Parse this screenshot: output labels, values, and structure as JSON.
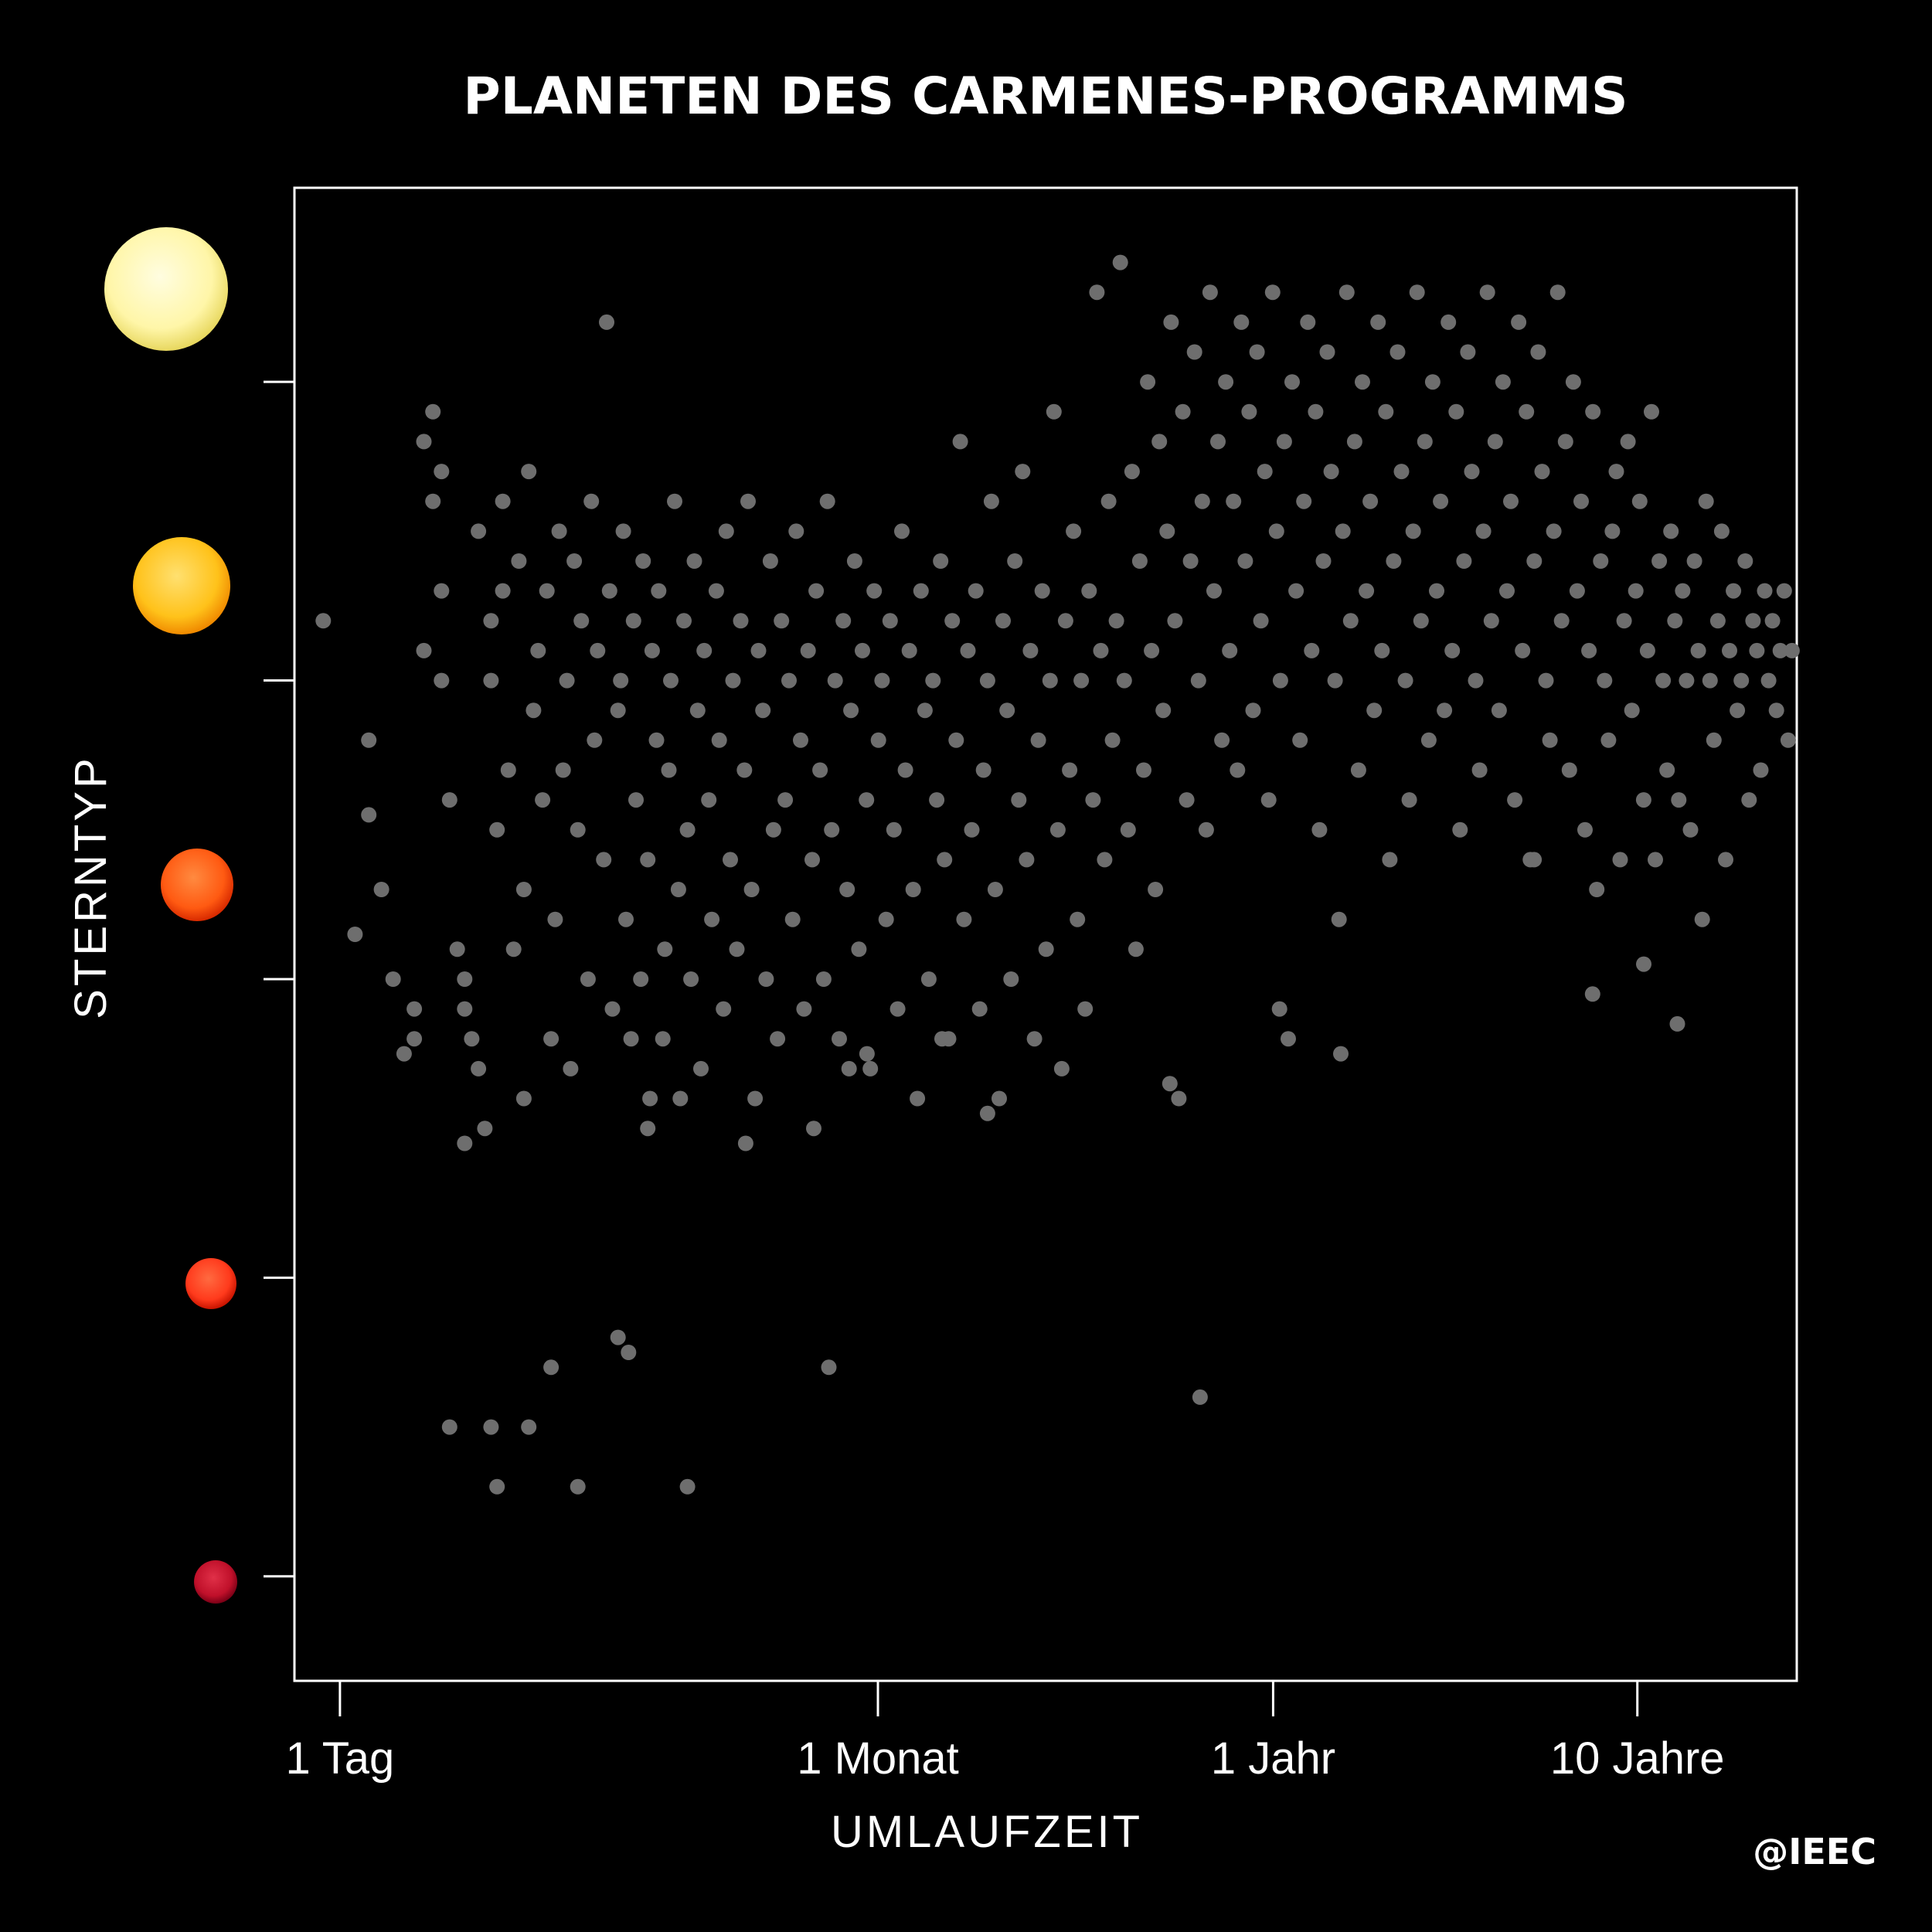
{
  "chart_data": {
    "type": "scatter",
    "title": "PLANETEN DES CARMENES-PROGRAMMS",
    "xlabel": "UMLAUFZEIT",
    "ylabel": "STERNTYP",
    "x_scale": "log",
    "x_unit": "days",
    "xlim": [
      0.75,
      10000
    ],
    "ylim": [
      -0.35,
      4.65
    ],
    "x_ticks": [
      {
        "label": "1 Tag",
        "value": 1
      },
      {
        "label": "1 Monat",
        "value": 30
      },
      {
        "label": "1 Jahr",
        "value": 365
      },
      {
        "label": "10 Jahre",
        "value": 3650
      }
    ],
    "y_categories": [
      {
        "level": 4,
        "star_color": "#fff6a8",
        "edge_color": "#e8d860"
      },
      {
        "level": 3,
        "star_color": "#ffc21a",
        "edge_color": "#f08a00"
      },
      {
        "level": 2,
        "star_color": "#ff5a12",
        "edge_color": "#d82a00"
      },
      {
        "level": 1,
        "star_color": "#ff3a1c",
        "edge_color": "#c81400"
      },
      {
        "level": 0,
        "star_color": "#c0102a",
        "edge_color": "#7a0016"
      }
    ],
    "marker_color": "#6e6e6e",
    "grid": false,
    "legend": "none",
    "points": [
      [
        0.9,
        3.2
      ],
      [
        1.2,
        2.8
      ],
      [
        1.3,
        2.3
      ],
      [
        1.4,
        2.0
      ],
      [
        1.6,
        1.9
      ],
      [
        1.6,
        1.8
      ],
      [
        1.7,
        3.1
      ],
      [
        1.8,
        3.9
      ],
      [
        1.9,
        3.7
      ],
      [
        1.8,
        3.6
      ],
      [
        1.9,
        3.3
      ],
      [
        1.9,
        3.0
      ],
      [
        2.0,
        2.6
      ],
      [
        2.1,
        2.1
      ],
      [
        1.7,
        3.8
      ],
      [
        2.2,
        2.0
      ],
      [
        2.2,
        1.9
      ],
      [
        2.3,
        1.8
      ],
      [
        2.4,
        3.5
      ],
      [
        2.4,
        1.7
      ],
      [
        2.5,
        1.5
      ],
      [
        2.6,
        3.2
      ],
      [
        2.6,
        3.0
      ],
      [
        2.7,
        2.5
      ],
      [
        2.8,
        3.3
      ],
      [
        2.8,
        3.6
      ],
      [
        2.9,
        2.7
      ],
      [
        3.0,
        2.1
      ],
      [
        3.1,
        3.4
      ],
      [
        3.2,
        2.3
      ],
      [
        3.3,
        3.7
      ],
      [
        3.4,
        2.9
      ],
      [
        3.5,
        3.1
      ],
      [
        3.6,
        2.6
      ],
      [
        3.7,
        3.3
      ],
      [
        3.8,
        1.8
      ],
      [
        3.9,
        2.2
      ],
      [
        4.0,
        3.5
      ],
      [
        4.1,
        2.7
      ],
      [
        4.2,
        3.0
      ],
      [
        4.3,
        1.7
      ],
      [
        4.4,
        3.4
      ],
      [
        4.5,
        2.5
      ],
      [
        4.6,
        3.2
      ],
      [
        4.8,
        2.0
      ],
      [
        4.9,
        3.6
      ],
      [
        5.0,
        2.8
      ],
      [
        5.1,
        3.1
      ],
      [
        5.3,
        2.4
      ],
      [
        5.4,
        4.2
      ],
      [
        5.5,
        3.3
      ],
      [
        5.6,
        1.9
      ],
      [
        5.8,
        2.9
      ],
      [
        5.9,
        3.0
      ],
      [
        6.0,
        3.5
      ],
      [
        6.1,
        2.2
      ],
      [
        6.3,
        1.8
      ],
      [
        6.4,
        3.2
      ],
      [
        6.5,
        2.6
      ],
      [
        6.7,
        2.0
      ],
      [
        6.8,
        3.4
      ],
      [
        7.0,
        2.4
      ],
      [
        7.1,
        1.6
      ],
      [
        7.2,
        3.1
      ],
      [
        7.4,
        2.8
      ],
      [
        7.5,
        3.3
      ],
      [
        7.7,
        1.8
      ],
      [
        7.8,
        2.1
      ],
      [
        8.0,
        2.7
      ],
      [
        8.1,
        3.0
      ],
      [
        8.3,
        3.6
      ],
      [
        8.5,
        2.3
      ],
      [
        8.6,
        1.6
      ],
      [
        8.8,
        3.2
      ],
      [
        9.0,
        2.5
      ],
      [
        9.2,
        2.0
      ],
      [
        9.4,
        3.4
      ],
      [
        9.6,
        2.9
      ],
      [
        9.8,
        1.7
      ],
      [
        10.0,
        3.1
      ],
      [
        10.3,
        2.6
      ],
      [
        10.5,
        2.2
      ],
      [
        10.8,
        3.3
      ],
      [
        11.0,
        2.8
      ],
      [
        11.3,
        1.9
      ],
      [
        11.5,
        3.5
      ],
      [
        11.8,
        2.4
      ],
      [
        12.0,
        3.0
      ],
      [
        12.3,
        2.1
      ],
      [
        12.6,
        3.2
      ],
      [
        12.9,
        2.7
      ],
      [
        13.2,
        3.6
      ],
      [
        13.5,
        2.3
      ],
      [
        13.8,
        1.6
      ],
      [
        14.1,
        3.1
      ],
      [
        14.5,
        2.9
      ],
      [
        14.8,
        2.0
      ],
      [
        15.2,
        3.4
      ],
      [
        15.5,
        2.5
      ],
      [
        15.9,
        1.8
      ],
      [
        16.3,
        3.2
      ],
      [
        16.7,
        2.6
      ],
      [
        17.1,
        3.0
      ],
      [
        17.5,
        2.2
      ],
      [
        17.9,
        3.5
      ],
      [
        18.4,
        2.8
      ],
      [
        18.8,
        1.9
      ],
      [
        19.3,
        3.1
      ],
      [
        19.8,
        2.4
      ],
      [
        20.3,
        3.3
      ],
      [
        20.8,
        2.7
      ],
      [
        21.3,
        2.0
      ],
      [
        21.8,
        3.6
      ],
      [
        22.4,
        2.5
      ],
      [
        22.9,
        3.0
      ],
      [
        23.5,
        1.8
      ],
      [
        24.1,
        3.2
      ],
      [
        24.7,
        2.3
      ],
      [
        25.3,
        2.9
      ],
      [
        25.9,
        3.4
      ],
      [
        26.6,
        2.1
      ],
      [
        27.2,
        3.1
      ],
      [
        27.9,
        2.6
      ],
      [
        28.6,
        1.7
      ],
      [
        29.3,
        3.3
      ],
      [
        30.1,
        2.8
      ],
      [
        30.8,
        3.0
      ],
      [
        31.6,
        2.2
      ],
      [
        32.4,
        3.2
      ],
      [
        33.2,
        2.5
      ],
      [
        34.0,
        1.9
      ],
      [
        34.9,
        3.5
      ],
      [
        35.7,
        2.7
      ],
      [
        36.6,
        3.1
      ],
      [
        37.5,
        2.3
      ],
      [
        38.5,
        1.6
      ],
      [
        39.4,
        3.3
      ],
      [
        40.4,
        2.9
      ],
      [
        41.4,
        2.0
      ],
      [
        42.5,
        3.0
      ],
      [
        43.5,
        2.6
      ],
      [
        44.6,
        3.4
      ],
      [
        45.7,
        2.4
      ],
      [
        46.9,
        1.8
      ],
      [
        48.0,
        3.2
      ],
      [
        49.2,
        2.8
      ],
      [
        50.5,
        3.8
      ],
      [
        51.7,
        2.2
      ],
      [
        53.0,
        3.1
      ],
      [
        54.3,
        2.5
      ],
      [
        55.7,
        3.3
      ],
      [
        57.1,
        1.9
      ],
      [
        58.5,
        2.7
      ],
      [
        60.0,
        3.0
      ],
      [
        61.5,
        3.6
      ],
      [
        63.0,
        2.3
      ],
      [
        64.6,
        1.6
      ],
      [
        66.2,
        3.2
      ],
      [
        67.9,
        2.9
      ],
      [
        69.6,
        2.0
      ],
      [
        71.3,
        3.4
      ],
      [
        73.1,
        2.6
      ],
      [
        74.9,
        3.7
      ],
      [
        76.8,
        2.4
      ],
      [
        78.7,
        3.1
      ],
      [
        80.7,
        1.8
      ],
      [
        82.7,
        2.8
      ],
      [
        84.8,
        3.3
      ],
      [
        86.9,
        2.1
      ],
      [
        89.1,
        3.0
      ],
      [
        91.3,
        3.9
      ],
      [
        93.6,
        2.5
      ],
      [
        95.9,
        1.7
      ],
      [
        98.3,
        3.2
      ],
      [
        100.8,
        2.7
      ],
      [
        103.3,
        3.5
      ],
      [
        105.9,
        2.2
      ],
      [
        108.5,
        3.0
      ],
      [
        111.2,
        1.9
      ],
      [
        114.0,
        3.3
      ],
      [
        116.9,
        2.6
      ],
      [
        119.8,
        4.3
      ],
      [
        122.8,
        3.1
      ],
      [
        125.8,
        2.4
      ],
      [
        129.0,
        3.6
      ],
      [
        132.2,
        2.8
      ],
      [
        135.5,
        3.2
      ],
      [
        138.9,
        4.4
      ],
      [
        142.4,
        3.0
      ],
      [
        145.9,
        2.5
      ],
      [
        149.6,
        3.7
      ],
      [
        153.3,
        2.1
      ],
      [
        157.1,
        3.4
      ],
      [
        161.1,
        2.7
      ],
      [
        165.1,
        4.0
      ],
      [
        169.2,
        3.1
      ],
      [
        173.4,
        2.3
      ],
      [
        177.8,
        3.8
      ],
      [
        182.2,
        2.9
      ],
      [
        186.8,
        3.5
      ],
      [
        191.5,
        4.2
      ],
      [
        196.2,
        3.2
      ],
      [
        201.1,
        1.6
      ],
      [
        206.2,
        3.9
      ],
      [
        211.3,
        2.6
      ],
      [
        216.6,
        3.4
      ],
      [
        222.0,
        4.1
      ],
      [
        227.6,
        3.0
      ],
      [
        233.3,
        3.6
      ],
      [
        239.1,
        2.5
      ],
      [
        245.1,
        4.3
      ],
      [
        251.2,
        3.3
      ],
      [
        257.5,
        3.8
      ],
      [
        263.9,
        2.8
      ],
      [
        270.5,
        4.0
      ],
      [
        277.3,
        3.1
      ],
      [
        284.2,
        3.6
      ],
      [
        291.3,
        2.7
      ],
      [
        298.6,
        4.2
      ],
      [
        306.1,
        3.4
      ],
      [
        313.7,
        3.9
      ],
      [
        321.6,
        2.9
      ],
      [
        329.6,
        4.1
      ],
      [
        337.8,
        3.2
      ],
      [
        346.3,
        3.7
      ],
      [
        354.9,
        2.6
      ],
      [
        363.8,
        4.3
      ],
      [
        372.9,
        3.5
      ],
      [
        382.2,
        3.0
      ],
      [
        391.8,
        3.8
      ],
      [
        401.6,
        1.8
      ],
      [
        411.6,
        4.0
      ],
      [
        421.9,
        3.3
      ],
      [
        432.5,
        2.8
      ],
      [
        443.3,
        3.6
      ],
      [
        454.4,
        4.2
      ],
      [
        465.7,
        3.1
      ],
      [
        477.4,
        3.9
      ],
      [
        489.3,
        2.5
      ],
      [
        501.5,
        3.4
      ],
      [
        514.1,
        4.1
      ],
      [
        526.9,
        3.7
      ],
      [
        540.1,
        3.0
      ],
      [
        553.6,
        2.2
      ],
      [
        567.4,
        3.5
      ],
      [
        581.6,
        4.3
      ],
      [
        596.1,
        3.2
      ],
      [
        611.0,
        3.8
      ],
      [
        626.3,
        2.7
      ],
      [
        641.9,
        4.0
      ],
      [
        658.0,
        3.3
      ],
      [
        674.4,
        3.6
      ],
      [
        691.3,
        2.9
      ],
      [
        708.6,
        4.2
      ],
      [
        726.3,
        3.1
      ],
      [
        744.4,
        3.9
      ],
      [
        763.0,
        2.4
      ],
      [
        782.1,
        3.4
      ],
      [
        801.6,
        4.1
      ],
      [
        821.7,
        3.7
      ],
      [
        842.2,
        3.0
      ],
      [
        863.3,
        2.6
      ],
      [
        884.8,
        3.5
      ],
      [
        906.9,
        4.3
      ],
      [
        929.6,
        3.2
      ],
      [
        952.9,
        3.8
      ],
      [
        976.7,
        2.8
      ],
      [
        1001.1,
        4.0
      ],
      [
        1026.1,
        3.3
      ],
      [
        1051.8,
        3.6
      ],
      [
        1078.1,
        2.9
      ],
      [
        1105.0,
        4.2
      ],
      [
        1132.6,
        3.1
      ],
      [
        1160.9,
        3.9
      ],
      [
        1190.0,
        2.5
      ],
      [
        1219.7,
        3.4
      ],
      [
        1250.2,
        4.1
      ],
      [
        1281.5,
        3.7
      ],
      [
        1313.5,
        3.0
      ],
      [
        1346.3,
        2.7
      ],
      [
        1380.0,
        3.5
      ],
      [
        1414.5,
        4.3
      ],
      [
        1449.9,
        3.2
      ],
      [
        1486.1,
        3.8
      ],
      [
        1523.3,
        2.9
      ],
      [
        1561.4,
        4.0
      ],
      [
        1600.4,
        3.3
      ],
      [
        1640.4,
        3.6
      ],
      [
        1681.4,
        2.6
      ],
      [
        1723.5,
        4.2
      ],
      [
        1766.5,
        3.1
      ],
      [
        1810.7,
        3.9
      ],
      [
        1856.0,
        2.4
      ],
      [
        1902.4,
        3.4
      ],
      [
        1949.9,
        4.1
      ],
      [
        1998.7,
        3.7
      ],
      [
        2048.6,
        3.0
      ],
      [
        2099.9,
        2.8
      ],
      [
        2152.3,
        3.5
      ],
      [
        2206.2,
        4.3
      ],
      [
        2261.3,
        3.2
      ],
      [
        2317.8,
        3.8
      ],
      [
        2375.8,
        2.7
      ],
      [
        2435.2,
        4.0
      ],
      [
        2496.1,
        3.3
      ],
      [
        2558.5,
        3.6
      ],
      [
        2622.4,
        2.5
      ],
      [
        2688.0,
        3.1
      ],
      [
        2755.2,
        3.9
      ],
      [
        2824.1,
        2.3
      ],
      [
        2894.7,
        3.4
      ],
      [
        2967.0,
        3.0
      ],
      [
        3041.2,
        2.8
      ],
      [
        3117.2,
        3.5
      ],
      [
        3195.2,
        3.7
      ],
      [
        3275.0,
        2.4
      ],
      [
        3356.9,
        3.2
      ],
      [
        3440.8,
        3.8
      ],
      [
        3526.9,
        2.9
      ],
      [
        3615.0,
        3.3
      ],
      [
        3705.4,
        3.6
      ],
      [
        3798.0,
        2.6
      ],
      [
        3893.0,
        3.1
      ],
      [
        3990.3,
        3.9
      ],
      [
        4090.1,
        2.4
      ],
      [
        4192.3,
        3.4
      ],
      [
        4297.1,
        3.0
      ],
      [
        4404.6,
        2.7
      ],
      [
        4514.7,
        3.5
      ],
      [
        4627.5,
        3.2
      ],
      [
        4743.2,
        2.6
      ],
      [
        4861.8,
        3.3
      ],
      [
        4983.3,
        3.0
      ],
      [
        5107.9,
        2.5
      ],
      [
        5235.6,
        3.4
      ],
      [
        5366.5,
        3.1
      ],
      [
        5500.7,
        2.2
      ],
      [
        5638.2,
        3.6
      ],
      [
        5779.2,
        3.0
      ],
      [
        5923.6,
        2.8
      ],
      [
        6071.7,
        3.2
      ],
      [
        6223.5,
        3.5
      ],
      [
        6379.1,
        2.4
      ],
      [
        6538.6,
        3.1
      ],
      [
        6702.1,
        3.3
      ],
      [
        6869.6,
        2.9
      ],
      [
        7041.4,
        3.0
      ],
      [
        7217.4,
        3.4
      ],
      [
        7397.8,
        2.6
      ],
      [
        7582.8,
        3.2
      ],
      [
        7772.4,
        3.1
      ],
      [
        7966.7,
        2.7
      ],
      [
        8165.8,
        3.3
      ],
      [
        8370.0,
        3.0
      ],
      [
        8579.2,
        3.2
      ],
      [
        8793.7,
        2.9
      ],
      [
        9013.6,
        3.1
      ],
      [
        9238.9,
        3.3
      ],
      [
        9469.9,
        2.8
      ],
      [
        9706.6,
        3.1
      ],
      [
        2.0,
        0.5
      ],
      [
        2.6,
        0.5
      ],
      [
        3.3,
        0.5
      ],
      [
        2.7,
        0.3
      ],
      [
        4.5,
        0.3
      ],
      [
        9.0,
        0.3
      ],
      [
        3.8,
        0.7
      ],
      [
        5.8,
        0.8
      ],
      [
        6.2,
        0.75
      ],
      [
        22.0,
        0.7
      ],
      [
        230.0,
        0.6
      ],
      [
        1.2,
        2.55
      ],
      [
        1.1,
        2.15
      ],
      [
        1.5,
        1.75
      ],
      [
        2.2,
        1.45
      ],
      [
        3.2,
        1.6
      ],
      [
        7.0,
        1.5
      ],
      [
        13.0,
        1.45
      ],
      [
        20.0,
        1.5
      ],
      [
        25.0,
        1.7
      ],
      [
        28.0,
        1.75
      ],
      [
        45.0,
        1.8
      ],
      [
        60.0,
        1.55
      ],
      [
        190.0,
        1.65
      ],
      [
        380.0,
        1.9
      ],
      [
        560.0,
        1.75
      ],
      [
        1900.0,
        2.4
      ],
      [
        2750.0,
        1.95
      ],
      [
        3800.0,
        2.05
      ],
      [
        4700.0,
        1.85
      ]
    ]
  },
  "credit": "@IEEC"
}
